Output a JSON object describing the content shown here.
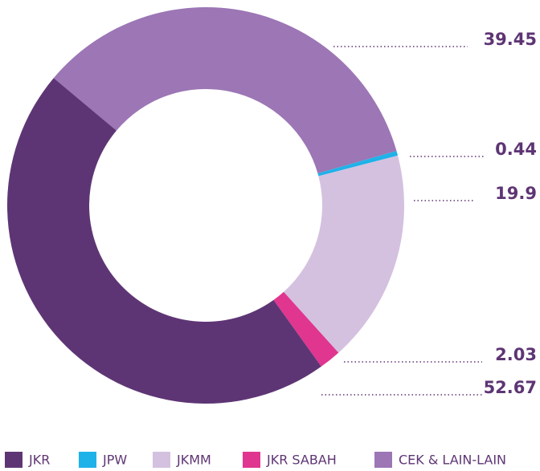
{
  "chart_data": {
    "type": "donut",
    "series": [
      {
        "name": "JKR",
        "color": "#5e3574",
        "values": [
          52.67
        ]
      },
      {
        "name": "JPW",
        "color": "#1fb2e8",
        "values": [
          0.44
        ]
      },
      {
        "name": "JKMM",
        "color": "#d4c1e0",
        "values": [
          19.9
        ]
      },
      {
        "name": "JKR SABAH",
        "color": "#e0368f",
        "values": [
          2.03
        ]
      },
      {
        "name": "CEK & LAIN-LAIN",
        "color": "#9c76b5",
        "values": [
          39.45
        ]
      }
    ]
  }
}
